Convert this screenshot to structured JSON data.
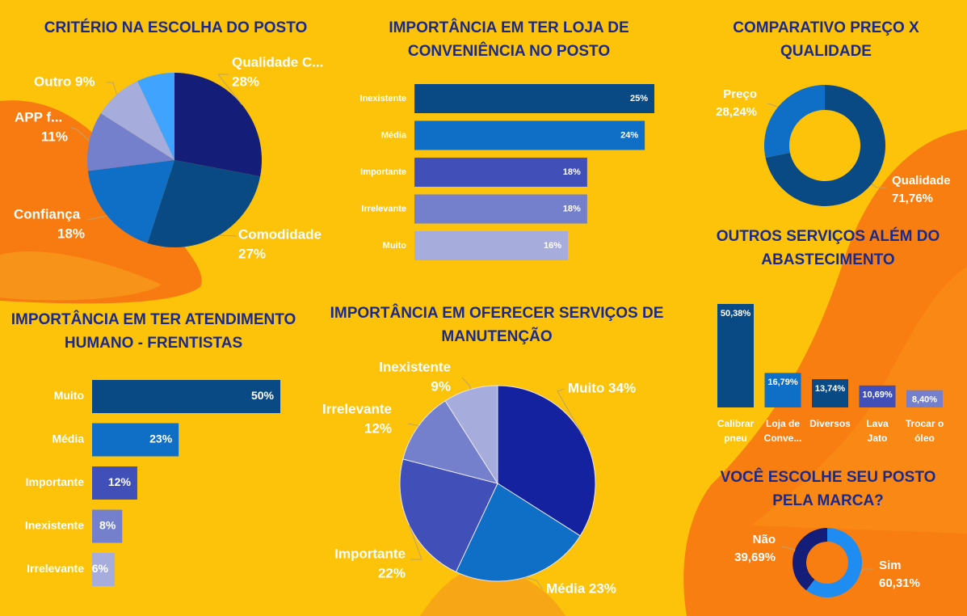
{
  "colors": {
    "background": "#fcc30a",
    "title": "#1b2a8a",
    "label": "#ffffff",
    "navy": "#141e78",
    "dark_blue": "#0a4a84",
    "blue": "#0f6ec6",
    "sky": "#40a4ff",
    "indigo": "#4050b8",
    "periwinkle": "#7480cc",
    "lavender": "#a6acdc",
    "orange": "#f77712"
  },
  "chart_data": [
    {
      "id": "criterio",
      "type": "pie",
      "title": "CRITÉRIO NA ESCOLHA DO POSTO",
      "slices": [
        {
          "label": "Qualidade C...",
          "value": 28,
          "display": "28%",
          "color": "#141e78"
        },
        {
          "label": "Comodidade",
          "value": 27,
          "display": "27%",
          "color": "#0a4a84"
        },
        {
          "label": "Confiança",
          "value": 18,
          "display": "18%",
          "color": "#0f6ec6"
        },
        {
          "label": "APP f...",
          "value": 11,
          "display": "11%",
          "color": "#7480cc"
        },
        {
          "label": "Outro",
          "value": 9,
          "display": "9%",
          "color": "#a6acdc"
        },
        {
          "label": "",
          "value": 7,
          "display": "",
          "color": "#40a4ff"
        }
      ]
    },
    {
      "id": "loja",
      "type": "bar",
      "orientation": "horizontal",
      "title": "IMPORTÂNCIA EM TER LOJA DE CONVENIÊNCIA NO POSTO",
      "categories": [
        "Inexistente",
        "Média",
        "Importante",
        "Irrelevante",
        "Muito"
      ],
      "values": [
        25,
        24,
        18,
        18,
        16
      ],
      "value_labels": [
        "25%",
        "24%",
        "18%",
        "18%",
        "16%"
      ],
      "colors": [
        "#0a4a84",
        "#0f6ec6",
        "#4050b8",
        "#7480cc",
        "#a6acdc"
      ]
    },
    {
      "id": "preco_qualidade",
      "type": "pie",
      "donut": true,
      "title": "COMPARATIVO PREÇO X QUALIDADE",
      "slices": [
        {
          "label": "Qualidade",
          "value": 71.76,
          "display": "71,76%",
          "color": "#0a4a84"
        },
        {
          "label": "Preço",
          "value": 28.24,
          "display": "28,24%",
          "color": "#0f6ec6"
        }
      ]
    },
    {
      "id": "atendimento",
      "type": "bar",
      "orientation": "horizontal",
      "title": "IMPORTÂNCIA EM TER ATENDIMENTO HUMANO - FRENTISTAS",
      "categories": [
        "Muito",
        "Média",
        "Importante",
        "Inexistente",
        "Irrelevante"
      ],
      "values": [
        50,
        23,
        12,
        8,
        6
      ],
      "value_labels": [
        "50%",
        "23%",
        "12%",
        "8%",
        "6%"
      ],
      "colors": [
        "#0a4a84",
        "#0f6ec6",
        "#4050b8",
        "#7480cc",
        "#a6acdc"
      ]
    },
    {
      "id": "manutencao",
      "type": "pie",
      "title": "IMPORTÂNCIA EM OFERECER SERVIÇOS DE MANUTENÇÃO",
      "slices": [
        {
          "label": "Muito",
          "value": 34,
          "display": "34%",
          "color": "#1422a0"
        },
        {
          "label": "Média",
          "value": 23,
          "display": "23%",
          "color": "#0f6ec6"
        },
        {
          "label": "Importante",
          "value": 22,
          "display": "22%",
          "color": "#4050b8"
        },
        {
          "label": "Irrelevante",
          "value": 12,
          "display": "12%",
          "color": "#7480cc"
        },
        {
          "label": "Inexistente",
          "value": 9,
          "display": "9%",
          "color": "#a6acdc"
        }
      ]
    },
    {
      "id": "outros_servicos",
      "type": "bar",
      "orientation": "vertical",
      "title": "OUTROS SERVIÇOS ALÉM DO ABASTECIMENTO",
      "categories": [
        [
          "Calibrar",
          "pneu"
        ],
        [
          "Loja de",
          "Conve..."
        ],
        [
          "Diversos"
        ],
        [
          "Lava",
          "Jato"
        ],
        [
          "Trocar o",
          "óleo"
        ]
      ],
      "values": [
        50.38,
        16.79,
        13.74,
        10.69,
        8.4
      ],
      "value_labels": [
        "50,38%",
        "16,79%",
        "13,74%",
        "10,69%",
        "8,40%"
      ],
      "colors": [
        "#0a4a84",
        "#0f6ec6",
        "#0a4a84",
        "#4050b8",
        "#7480cc"
      ]
    },
    {
      "id": "marca",
      "type": "pie",
      "donut": true,
      "title": "VOCÊ ESCOLHE SEU POSTO PELA MARCA?",
      "slices": [
        {
          "label": "Sim",
          "value": 60.31,
          "display": "60,31%",
          "color": "#1e8cf0"
        },
        {
          "label": "Não",
          "value": 39.69,
          "display": "39,69%",
          "color": "#141e78"
        }
      ]
    }
  ]
}
